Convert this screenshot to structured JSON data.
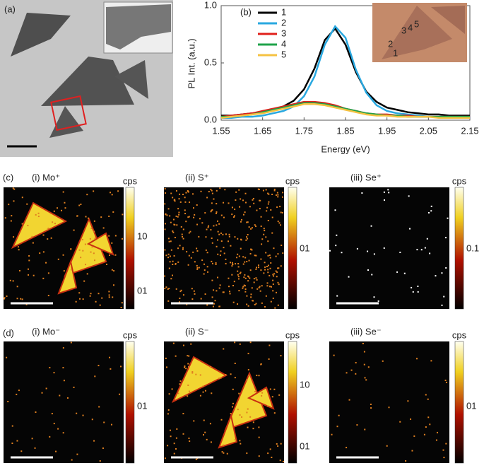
{
  "panels": {
    "a": {
      "label": "(a)"
    },
    "c": {
      "label": "(c)",
      "maps": [
        {
          "title": "(i) Mo⁺",
          "colorbar": {
            "unit": "cps",
            "ticks": [
              "10",
              "01"
            ]
          }
        },
        {
          "title": "(ii) S⁺",
          "colorbar": {
            "unit": "cps",
            "ticks": [
              "01"
            ]
          }
        },
        {
          "title": "(iii) Se⁺",
          "colorbar": {
            "unit": "cps",
            "ticks": [
              "0.1"
            ]
          }
        }
      ]
    },
    "d": {
      "label": "(d)",
      "maps": [
        {
          "title": "(i) Mo⁻",
          "colorbar": {
            "unit": "cps",
            "ticks": [
              "01"
            ]
          }
        },
        {
          "title": "(ii) S⁻",
          "colorbar": {
            "unit": "cps",
            "ticks": [
              "10",
              "01"
            ]
          }
        },
        {
          "title": "(iii) Se⁻",
          "colorbar": {
            "unit": "cps",
            "ticks": [
              "01"
            ]
          }
        }
      ]
    }
  },
  "chart_data": {
    "type": "line",
    "panel_label": "(b)",
    "x_label": "Energy (eV)",
    "y_label": "PL Int. (a.u.)",
    "xlim": [
      1.55,
      2.15
    ],
    "xticks": [
      1.55,
      1.65,
      1.75,
      1.85,
      1.95,
      2.05,
      2.15
    ],
    "ylim": [
      0,
      1.0
    ],
    "yticks": [
      {
        "value": 0,
        "label": "0.0"
      },
      0.5,
      {
        "value": 1.0,
        "label": "1.0"
      }
    ],
    "inset_labels": [
      "1",
      "2",
      "3",
      "4",
      "5"
    ],
    "x": [
      1.55,
      1.575,
      1.6,
      1.625,
      1.65,
      1.675,
      1.7,
      1.725,
      1.75,
      1.775,
      1.8,
      1.825,
      1.85,
      1.875,
      1.9,
      1.925,
      1.95,
      1.975,
      2.0,
      2.025,
      2.05,
      2.075,
      2.1,
      2.125,
      2.15
    ],
    "series": [
      {
        "name": "1",
        "color": "#000000",
        "values": [
          0.04,
          0.04,
          0.05,
          0.06,
          0.07,
          0.09,
          0.12,
          0.17,
          0.27,
          0.45,
          0.7,
          0.8,
          0.66,
          0.42,
          0.25,
          0.16,
          0.11,
          0.09,
          0.07,
          0.06,
          0.05,
          0.05,
          0.04,
          0.04,
          0.04
        ]
      },
      {
        "name": "2",
        "color": "#29a8e0",
        "values": [
          0.02,
          0.02,
          0.03,
          0.03,
          0.04,
          0.06,
          0.08,
          0.12,
          0.21,
          0.38,
          0.66,
          0.82,
          0.72,
          0.44,
          0.24,
          0.13,
          0.08,
          0.06,
          0.05,
          0.04,
          0.03,
          0.03,
          0.03,
          0.02,
          0.02
        ]
      },
      {
        "name": "3",
        "color": "#e0201b",
        "values": [
          0.03,
          0.04,
          0.05,
          0.06,
          0.08,
          0.1,
          0.12,
          0.14,
          0.16,
          0.16,
          0.15,
          0.13,
          0.1,
          0.08,
          0.06,
          0.05,
          0.05,
          0.04,
          0.04,
          0.03,
          0.03,
          0.03,
          0.03,
          0.03,
          0.03
        ]
      },
      {
        "name": "4",
        "color": "#1fa34a",
        "values": [
          0.03,
          0.03,
          0.04,
          0.05,
          0.07,
          0.09,
          0.11,
          0.13,
          0.15,
          0.15,
          0.14,
          0.12,
          0.1,
          0.08,
          0.06,
          0.05,
          0.04,
          0.04,
          0.03,
          0.03,
          0.03,
          0.03,
          0.03,
          0.03,
          0.03
        ]
      },
      {
        "name": "5",
        "color": "#f5c242",
        "values": [
          0.02,
          0.03,
          0.04,
          0.05,
          0.06,
          0.08,
          0.1,
          0.12,
          0.14,
          0.14,
          0.13,
          0.11,
          0.09,
          0.07,
          0.05,
          0.04,
          0.04,
          0.03,
          0.03,
          0.03,
          0.03,
          0.02,
          0.02,
          0.02,
          0.02
        ]
      }
    ]
  }
}
